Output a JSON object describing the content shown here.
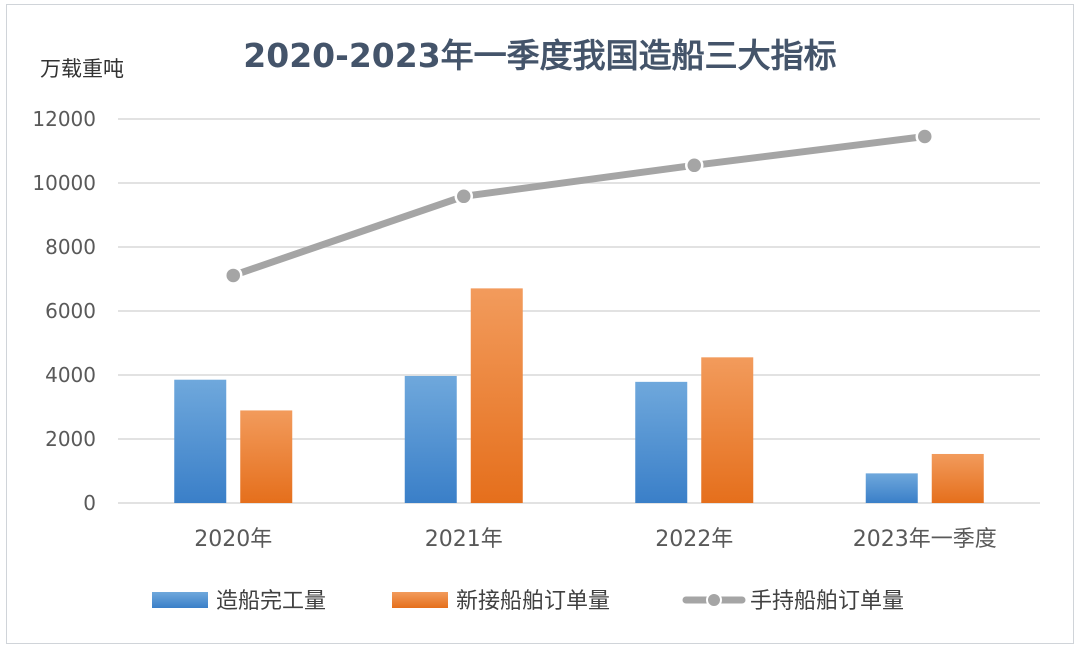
{
  "chart_data": {
    "type": "bar",
    "title": "2020-2023年一季度我国造船三大指标",
    "ylabel": "万载重吨",
    "xlabel": "",
    "ylim": [
      0,
      12000
    ],
    "y_ticks": [
      "0",
      "2000",
      "4000",
      "6000",
      "8000",
      "10000",
      "12000"
    ],
    "categories": [
      "2020年",
      "2021年",
      "2022年",
      "2023年一季度"
    ],
    "grid": true,
    "legend_position": "bottom",
    "series": [
      {
        "name": "造船完工量",
        "type": "bar",
        "color": "#4a8ed4",
        "values": [
          3853,
          3970,
          3786,
          926
        ]
      },
      {
        "name": "新接船舶订单量",
        "type": "bar",
        "color": "#ee7d2c",
        "values": [
          2893,
          6707,
          4552,
          1532
        ]
      },
      {
        "name": "手持船舶订单量",
        "type": "line",
        "color": "#a5a5a5",
        "values": [
          7111,
          9584,
          10553,
          11454
        ]
      }
    ]
  }
}
